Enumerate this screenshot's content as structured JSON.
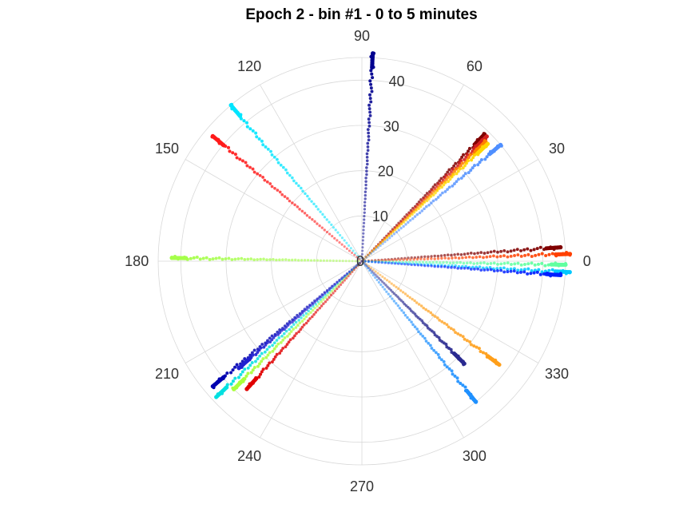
{
  "chart_data": {
    "type": "scatter",
    "subtype": "polar",
    "title": "Epoch 2 - bin #1 - 0 to 5 minutes",
    "r_ticks": [
      0,
      10,
      20,
      30,
      40
    ],
    "r_max": 45,
    "theta_ticks": [
      0,
      30,
      60,
      90,
      120,
      150,
      180,
      210,
      240,
      270,
      300,
      330
    ],
    "grid": true,
    "colormap": "jet",
    "series": [
      {
        "theta": 87,
        "r_max": 46,
        "color": "#00008f"
      },
      {
        "theta": 46,
        "r_max": 39,
        "color": "#800000"
      },
      {
        "theta": 45,
        "r_max": 39,
        "color": "#d42020"
      },
      {
        "theta": 44,
        "r_max": 38,
        "color": "#ff7f00"
      },
      {
        "theta": 43,
        "r_max": 38,
        "color": "#ffd700"
      },
      {
        "theta": 40,
        "r_max": 40,
        "color": "#4f8fff"
      },
      {
        "theta": 4,
        "r_max": 44,
        "color": "#800000"
      },
      {
        "theta": 2,
        "r_max": 46,
        "color": "#ff4000"
      },
      {
        "theta": -1,
        "r_max": 45,
        "color": "#60ffa0"
      },
      {
        "theta": -3,
        "r_max": 46,
        "color": "#00c8ff"
      },
      {
        "theta": -4,
        "r_max": 44,
        "color": "#0020ff"
      },
      {
        "theta": -37,
        "r_max": 38,
        "color": "#ff9f1a"
      },
      {
        "theta": -45,
        "r_max": 32,
        "color": "#2a2a90"
      },
      {
        "theta": -51,
        "r_max": 40,
        "color": "#1e90ff"
      },
      {
        "theta": 130,
        "r_max": 45,
        "color": "#00e5ff"
      },
      {
        "theta": 140,
        "r_max": 43,
        "color": "#ff1a1a"
      },
      {
        "theta": 179,
        "r_max": 42,
        "color": "#a5ff4a"
      },
      {
        "theta": 220,
        "r_max": 43,
        "color": "#0000b0"
      },
      {
        "theta": 223,
        "r_max": 44,
        "color": "#00e0e0"
      },
      {
        "theta": 225,
        "r_max": 40,
        "color": "#aaff3c"
      },
      {
        "theta": 228,
        "r_max": 38,
        "color": "#e00000"
      },
      {
        "theta": 221,
        "r_max": 36,
        "color": "#2020d0"
      }
    ]
  }
}
